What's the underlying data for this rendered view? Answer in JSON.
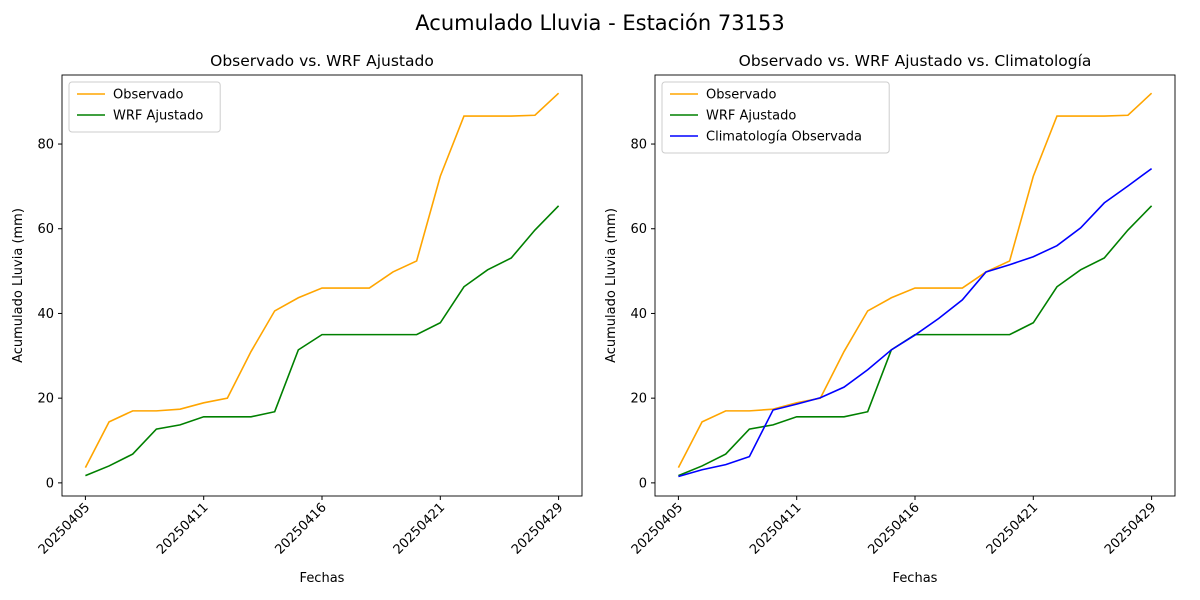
{
  "title": "Acumulado Lluvia - Estación 73153",
  "chart_data": [
    {
      "type": "line",
      "title": "Observado vs. WRF Ajustado",
      "x_label": "Fechas",
      "y_label": "Acumulado Lluvia (mm)",
      "categories": [
        "20250405",
        null,
        null,
        null,
        null,
        "20250411",
        null,
        null,
        null,
        null,
        "20250416",
        null,
        null,
        null,
        null,
        "20250421",
        null,
        null,
        null,
        null,
        "20250429"
      ],
      "series": [
        {
          "name": "Observado",
          "color": "#ffa500",
          "values": [
            3.6,
            14.4,
            17.0,
            17.0,
            17.4,
            18.9,
            20.0,
            31.0,
            40.6,
            43.7,
            46.0,
            46.0,
            46.0,
            49.8,
            52.4,
            72.4,
            86.6,
            86.6,
            86.6,
            86.8,
            92.0
          ]
        },
        {
          "name": "WRF Ajustado",
          "color": "#008000",
          "values": [
            1.7,
            4.0,
            6.8,
            12.7,
            13.7,
            15.6,
            15.6,
            15.6,
            16.8,
            31.4,
            35.0,
            35.0,
            35.0,
            35.0,
            35.0,
            37.8,
            46.3,
            50.3,
            53.1,
            59.7,
            65.4
          ]
        }
      ],
      "ylim": [
        -3.1,
        96.3
      ],
      "yticks": [
        0,
        20,
        40,
        60,
        80
      ],
      "legend": "upper left"
    },
    {
      "type": "line",
      "title": "Observado vs. WRF Ajustado vs. Climatología",
      "x_label": "Fechas",
      "y_label": "Acumulado Lluvia (mm)",
      "categories": [
        "20250405",
        null,
        null,
        null,
        null,
        "20250411",
        null,
        null,
        null,
        null,
        "20250416",
        null,
        null,
        null,
        null,
        "20250421",
        null,
        null,
        null,
        null,
        "20250429"
      ],
      "series": [
        {
          "name": "Observado",
          "color": "#ffa500",
          "values": [
            3.6,
            14.4,
            17.0,
            17.0,
            17.4,
            18.9,
            20.0,
            31.0,
            40.6,
            43.7,
            46.0,
            46.0,
            46.0,
            49.8,
            52.4,
            72.4,
            86.6,
            86.6,
            86.6,
            86.8,
            92.0
          ]
        },
        {
          "name": "WRF Ajustado",
          "color": "#008000",
          "values": [
            1.7,
            4.0,
            6.8,
            12.7,
            13.7,
            15.6,
            15.6,
            15.6,
            16.8,
            31.4,
            35.0,
            35.0,
            35.0,
            35.0,
            35.0,
            37.8,
            46.3,
            50.3,
            53.1,
            59.7,
            65.4
          ]
        },
        {
          "name": "Climatología Observada",
          "color": "#0000ff",
          "values": [
            1.5,
            3.1,
            4.3,
            6.2,
            17.2,
            18.6,
            20.1,
            22.6,
            26.7,
            31.4,
            34.9,
            38.8,
            43.2,
            49.8,
            51.5,
            53.4,
            56.0,
            60.2,
            66.1,
            70.1,
            74.2
          ]
        }
      ],
      "ylim": [
        -3.1,
        96.3
      ],
      "yticks": [
        0,
        20,
        40,
        60,
        80
      ],
      "legend": "upper left"
    }
  ]
}
